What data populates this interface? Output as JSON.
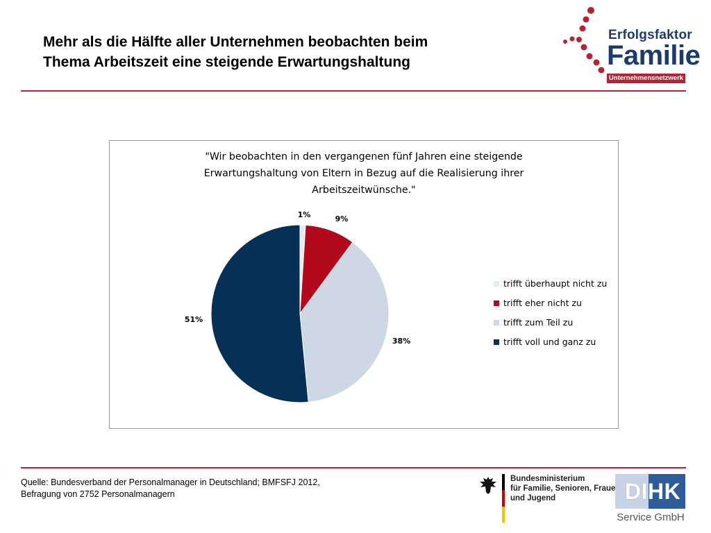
{
  "header": {
    "title_line1": "Mehr als die Hälfte aller Unternehmen beobachten beim",
    "title_line2": "Thema Arbeitszeit eine steigende Erwartungshaltung"
  },
  "logo": {
    "line1": "Erfolgsfaktor",
    "line2": "Familie",
    "badge": "Unternehmensnetzwerk",
    "color": "#1d3c6e",
    "accent": "#b52434"
  },
  "colors": {
    "rule": "#b52434"
  },
  "chart_data": {
    "type": "pie",
    "title_lines": [
      "\"Wir beobachten in den vergangenen fünf Jahren eine steigende",
      "Erwartungshaltung von Eltern in Bezug auf die Realisierung ihrer",
      "Arbeitszeitwünsche.\""
    ],
    "slices": [
      {
        "label": "trifft überhaupt nicht zu",
        "value": 1,
        "display": "1%",
        "color": "#e6ebf2"
      },
      {
        "label": "trifft eher nicht zu",
        "value": 9,
        "display": "9%",
        "color": "#b20a1c"
      },
      {
        "label": "trifft zum Teil zu",
        "value": 38,
        "display": "38%",
        "color": "#ced8e5"
      },
      {
        "label": "trifft voll und ganz zu",
        "value": 51,
        "display": "51%",
        "color": "#063056"
      }
    ],
    "start_angle_deg": 0,
    "direction": "clockwise",
    "legend_position": "right"
  },
  "footer": {
    "source_line1": "Quelle: Bundesverband der Personalmanager in Deutschland; BMFSFJ 2012,",
    "source_line2": "Befragung von 2752 Personalmanagern",
    "ministry_line1": "Bundesministerium",
    "ministry_line2": "für Familie, Senioren, Frauen",
    "ministry_line3": "und Jugend",
    "dihk_label": "DIHK",
    "dihk_sub": "Service GmbH"
  }
}
